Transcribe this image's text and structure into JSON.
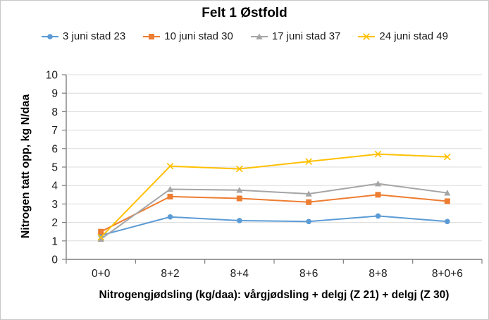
{
  "chart_data": {
    "type": "line",
    "title": "Felt 1 Østfold",
    "categories": [
      "0+0",
      "8+2",
      "8+4",
      "8+6",
      "8+8",
      "8+0+6"
    ],
    "series": [
      {
        "name": "3 juni stad 23",
        "color": "#5B9BD5",
        "marker": "circle",
        "values": [
          1.3,
          2.3,
          2.1,
          2.05,
          2.35,
          2.05
        ]
      },
      {
        "name": "10 juni stad 30",
        "color": "#ED7D31",
        "marker": "square",
        "values": [
          1.5,
          3.4,
          3.3,
          3.1,
          3.5,
          3.15
        ]
      },
      {
        "name": "17 juni stad 37",
        "color": "#A5A5A5",
        "marker": "triangle",
        "values": [
          1.1,
          3.8,
          3.75,
          3.55,
          4.1,
          3.6
        ]
      },
      {
        "name": "24 juni stad 49",
        "color": "#FFC000",
        "marker": "x",
        "values": [
          1.2,
          5.05,
          4.9,
          5.3,
          5.7,
          5.55
        ]
      }
    ],
    "xlabel": "Nitrogengjødsling (kg/daa): vårgjødsling + delgj (Z 21) + delgj (Z 30)",
    "ylabel": "Nitrogen tatt opp, kg N/daa",
    "ylim": [
      0,
      10
    ],
    "ytick_interval": 1,
    "yticks": [
      "0",
      "1",
      "2",
      "3",
      "4",
      "5",
      "6",
      "7",
      "8",
      "9",
      "10"
    ],
    "legend_position": "top",
    "grid": "horizontal-only",
    "colors": {
      "gridline": "#DCDCDC",
      "axis": "#7F7F7F",
      "text": "#000000",
      "background": "#FFFFFF",
      "frame_border": "#C8C8C8"
    }
  }
}
